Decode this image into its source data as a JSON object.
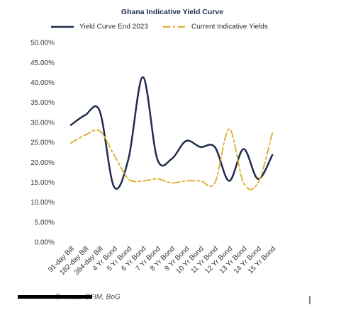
{
  "chart_data": {
    "type": "line",
    "title": "Ghana Indicative Yield Curve",
    "categories": [
      "91-day Bill",
      "182-day Bill",
      "364-day Bill",
      "4 Yr Bond",
      "5 Yr Bond",
      "6 Yr Bond",
      "7 Yr Bond",
      "8 Yr Bond",
      "9 Yr Bond",
      "10 Yr Bond",
      "11 Yr Bond",
      "12 Yr Bond",
      "13 Yr Bond",
      "14 Yr Bond",
      "15 Yr Bond"
    ],
    "series": [
      {
        "name": "Yield Curve End 2023",
        "color": "#1f2d4e",
        "dash": false,
        "values": [
          29.5,
          32,
          33,
          14,
          21,
          41.5,
          21,
          21,
          25.5,
          24,
          24,
          15.5,
          23.5,
          16,
          22
        ]
      },
      {
        "name": "Current Indicative Yields",
        "color": "#e0b33a",
        "dash": true,
        "values": [
          25,
          27,
          28,
          22,
          16,
          15.5,
          16,
          15,
          15.5,
          15.5,
          15,
          28.5,
          15,
          15,
          27.5
        ]
      }
    ],
    "ylim": [
      0,
      50
    ],
    "yticks": [
      {
        "value": 0,
        "label": "0.00%"
      },
      {
        "value": 5,
        "label": "5.00%"
      },
      {
        "value": 10,
        "label": "10.00%"
      },
      {
        "value": 15,
        "label": "15.00%"
      },
      {
        "value": 20,
        "label": "20.00%"
      },
      {
        "value": 25,
        "label": "25.00%"
      },
      {
        "value": 30,
        "label": "30.00%"
      },
      {
        "value": 35,
        "label": "35.00%"
      },
      {
        "value": 40,
        "label": "40.00%"
      },
      {
        "value": 45,
        "label": "45.00%"
      },
      {
        "value": 50,
        "label": "50.00%"
      }
    ],
    "source": "Sources: BFIM, BoG"
  }
}
